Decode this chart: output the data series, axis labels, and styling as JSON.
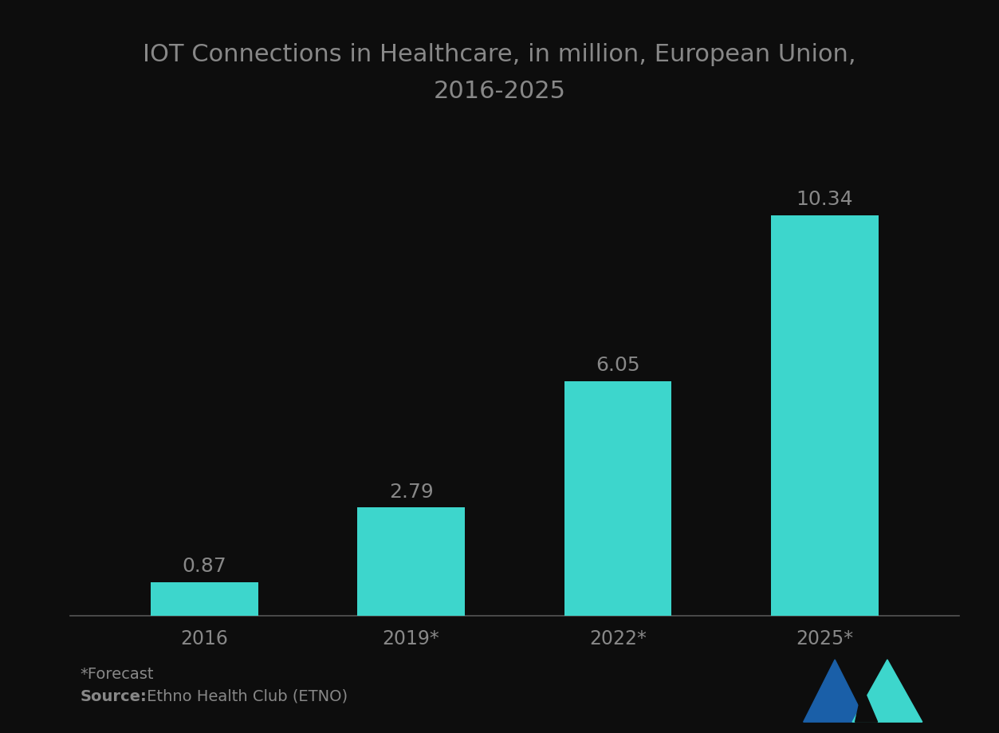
{
  "title_line1": "IOT Connections in Healthcare, in million, European Union,",
  "title_line2": "2016-2025",
  "categories": [
    "2016",
    "2019*",
    "2022*",
    "2025*"
  ],
  "values": [
    0.87,
    2.79,
    6.05,
    10.34
  ],
  "bar_color": "#3dd6cc",
  "background_color": "#0d0d0d",
  "title_color": "#888888",
  "label_color": "#888888",
  "footnote_bold": "*Forecast",
  "footnote_source_label": "Source:",
  "footnote_source_text": " Ethno Health Club (ETNO)",
  "ylim": [
    0,
    12.5
  ],
  "bar_width": 0.52,
  "value_label_fontsize": 18,
  "title_fontsize": 22,
  "tick_fontsize": 17,
  "footnote_fontsize": 14,
  "logo_blue": "#1a5fa8",
  "logo_teal": "#3dd6cc"
}
